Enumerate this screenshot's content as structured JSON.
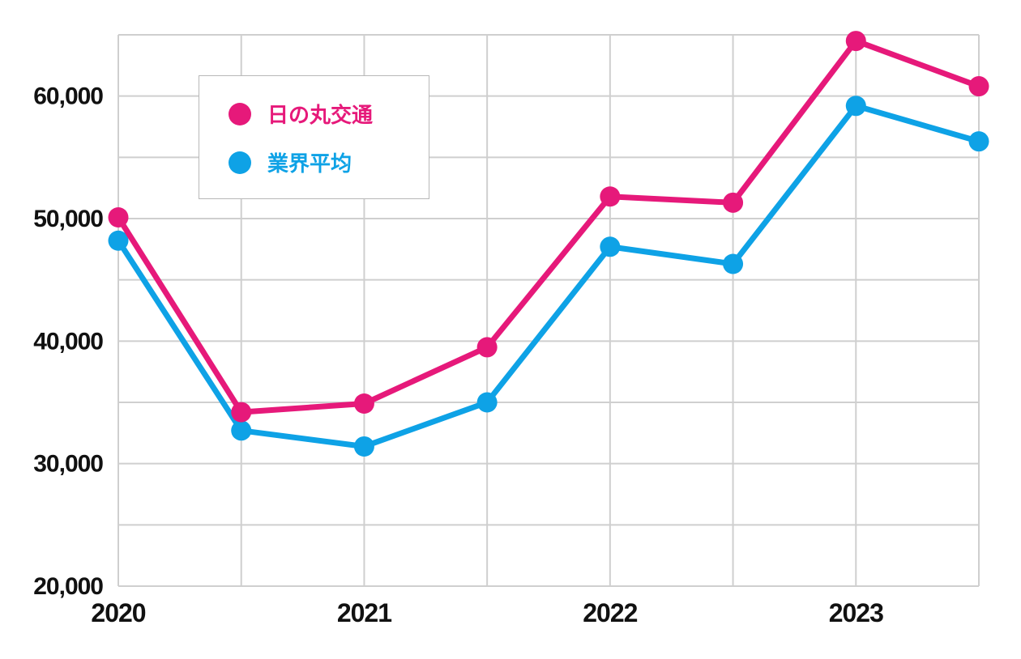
{
  "chart_data": {
    "type": "line",
    "x": [
      2020.0,
      2020.5,
      2021.0,
      2021.5,
      2022.0,
      2022.5,
      2023.0,
      2023.5
    ],
    "x_ticks": [
      "2020",
      "2021",
      "2022",
      "2023"
    ],
    "y_ticks": [
      "20,000",
      "30,000",
      "40,000",
      "50,000",
      "60,000"
    ],
    "ylim": [
      20000,
      65000
    ],
    "grid": true,
    "legend_position": "top-left",
    "series": [
      {
        "name": "日の丸交通",
        "color": "#e6197a",
        "values": [
          50100,
          34200,
          34900,
          39500,
          51800,
          51300,
          64500,
          60800
        ]
      },
      {
        "name": "業界平均",
        "color": "#0ea2e6",
        "values": [
          48200,
          32700,
          31400,
          35000,
          47700,
          46300,
          59200,
          56300
        ]
      }
    ]
  }
}
